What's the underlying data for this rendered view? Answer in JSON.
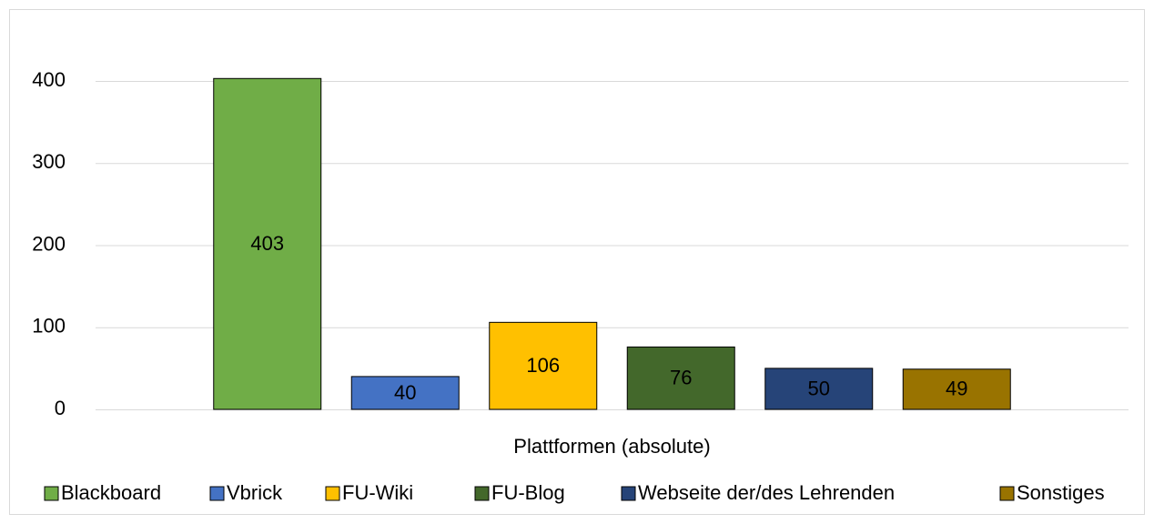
{
  "chart_data": {
    "type": "bar",
    "categories": [
      "Plattformen (absolute)"
    ],
    "series": [
      {
        "name": "Blackboard",
        "color": "#70ad47",
        "values": [
          403
        ]
      },
      {
        "name": "Vbrick",
        "color": "#4472c4",
        "values": [
          40
        ]
      },
      {
        "name": "FU-Wiki",
        "color": "#ffc000",
        "values": [
          106
        ]
      },
      {
        "name": "FU-Blog",
        "color": "#43682b",
        "values": [
          76
        ]
      },
      {
        "name": "Webseite der/des Lehrenden",
        "color": "#264478",
        "values": [
          50
        ]
      },
      {
        "name": "Sonstiges",
        "color": "#997300",
        "values": [
          49
        ]
      }
    ],
    "ylim": [
      0,
      400
    ],
    "yticks": [
      0,
      100,
      200,
      300,
      400
    ],
    "grid": true,
    "legend": "bottom"
  }
}
